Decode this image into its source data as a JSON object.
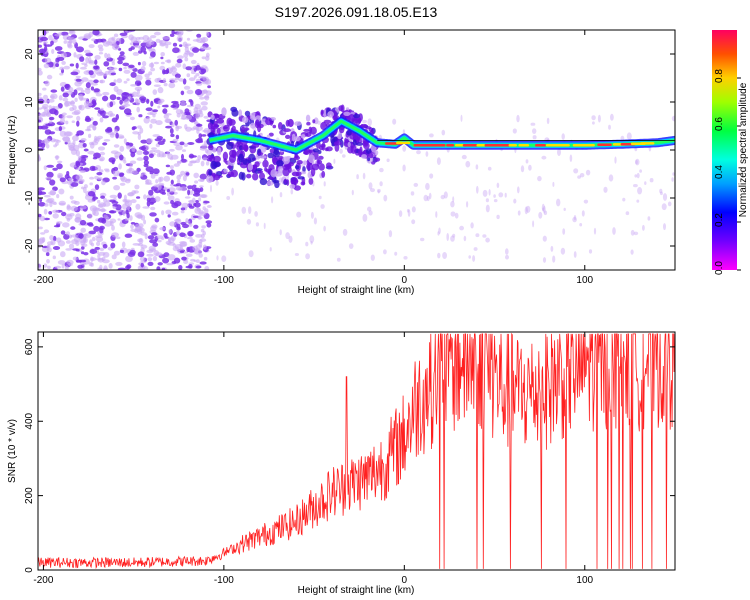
{
  "title": "S197.2026.091.18.05.E13",
  "colors": {
    "signal": "#ff2020",
    "bg_scatter": "#7a30e8",
    "bg_scatter_light": "#c9a8f5",
    "axis": "#000000"
  },
  "chart_data": [
    {
      "type": "heatmap",
      "title": "S197.2026.091.18.05.E13",
      "xlabel": "Height of straight line (km)",
      "ylabel": "Frequency (Hz)",
      "xlim": [
        -203,
        150
      ],
      "ylim": [
        -25,
        25
      ],
      "xticks": [
        -200,
        -100,
        0,
        100
      ],
      "yticks": [
        -20,
        -10,
        0,
        10,
        20
      ],
      "colorbar": {
        "label": "Normalized spectral amplitude",
        "range": [
          0,
          1
        ],
        "ticks": [
          "0.0",
          "0.2",
          "0.4",
          "0.6",
          "0.8"
        ]
      },
      "features": {
        "noise_region_x": [
          -203,
          -108
        ],
        "carrier_frequency_hz": 1.0,
        "carrier_start_x": -15,
        "scintillation_region_x": [
          -108,
          -15
        ]
      },
      "series": [
        {
          "name": "carrier-ridge",
          "x": [
            -108,
            -95,
            -80,
            -60,
            -45,
            -35,
            -25,
            -15,
            -5,
            0,
            5,
            10,
            20,
            40,
            60,
            80,
            100,
            120,
            140,
            150
          ],
          "y": [
            2,
            3,
            2,
            0,
            3,
            6,
            4,
            1.5,
            1.2,
            2.5,
            1,
            1,
            1,
            1,
            1,
            1,
            1,
            1.2,
            1.5,
            2
          ]
        }
      ]
    },
    {
      "type": "line",
      "xlabel": "Height of straight line (km)",
      "ylabel": "SNR (10 * v/v)",
      "xlim": [
        -203,
        150
      ],
      "ylim": [
        0,
        640
      ],
      "xticks": [
        -200,
        -100,
        0,
        100
      ],
      "yticks": [
        0,
        200,
        400,
        600
      ],
      "series": [
        {
          "name": "SNR envelope",
          "x": [
            -203,
            -150,
            -110,
            -100,
            -90,
            -80,
            -70,
            -60,
            -50,
            -40,
            -30,
            -20,
            -10,
            0,
            5,
            10,
            15,
            20,
            30,
            40,
            45,
            50,
            55,
            60,
            70,
            80,
            90,
            100,
            110,
            120,
            130,
            140,
            150
          ],
          "y": [
            20,
            20,
            25,
            45,
            70,
            90,
            110,
            130,
            170,
            210,
            230,
            250,
            290,
            360,
            430,
            470,
            500,
            540,
            560,
            570,
            560,
            520,
            490,
            480,
            475,
            500,
            540,
            560,
            575,
            575,
            570,
            580,
            580
          ]
        }
      ],
      "annotations": {
        "spike_at_x": -32,
        "spike_value": 520,
        "dropouts_start_x": 14
      }
    }
  ]
}
